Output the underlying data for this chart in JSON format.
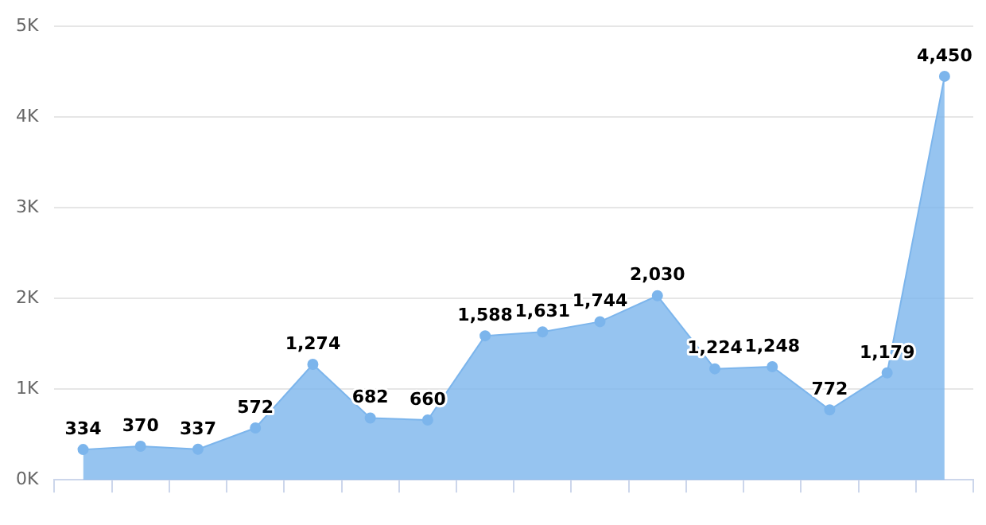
{
  "chart_data": {
    "type": "area",
    "categories": [
      null,
      null,
      null,
      null,
      null,
      null,
      null,
      null,
      null,
      null,
      null,
      null,
      null,
      null,
      null,
      null
    ],
    "series": [
      {
        "color": "#7cb5ec",
        "values": [
          334,
          370,
          337,
          572,
          1274,
          682,
          660,
          1588,
          1631,
          1744,
          2030,
          1224,
          1248,
          772,
          1179,
          4450
        ],
        "value_labels": [
          "334",
          "370",
          "337",
          "572",
          "1,274",
          "682",
          "660",
          "1,588",
          "1,631",
          "1,744",
          "2,030",
          "1,224",
          "1,248",
          "772",
          "1,179",
          "4,450"
        ]
      }
    ],
    "ylim": [
      0,
      5000
    ],
    "yticks": [
      {
        "value": 0,
        "label": "0K"
      },
      {
        "value": 1000,
        "label": "1K"
      },
      {
        "value": 2000,
        "label": "2K"
      },
      {
        "value": 3000,
        "label": "3K"
      },
      {
        "value": 4000,
        "label": "4K"
      },
      {
        "value": 5000,
        "label": "5K"
      }
    ],
    "grid": "y",
    "marker": "circle",
    "legend": false
  }
}
